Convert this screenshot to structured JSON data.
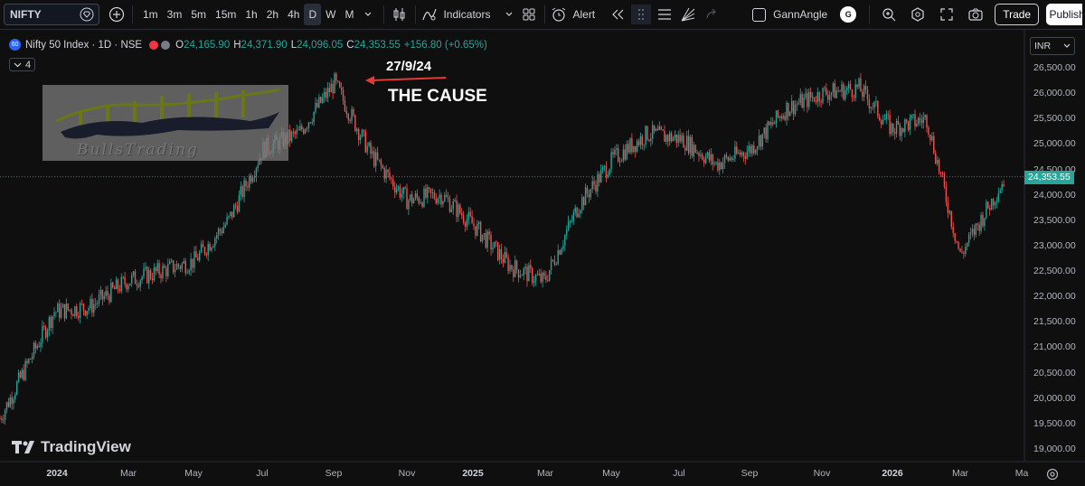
{
  "toolbar": {
    "symbol": "NIFTY",
    "timeframes": [
      "1m",
      "3m",
      "5m",
      "15m",
      "1h",
      "2h",
      "4h",
      "D",
      "W",
      "M"
    ],
    "active_timeframe": "D",
    "indicators_label": "Indicators",
    "alert_label": "Alert",
    "template_name": "GannAngle",
    "template_badge": "G",
    "trade_label": "Trade",
    "publish_label": "Publish"
  },
  "legend": {
    "exchange_badge": "60",
    "title": "Nifty 50 Index · 1D · NSE",
    "open_key": "O",
    "open": "24,165.90",
    "high_key": "H",
    "high": "24,371.90",
    "low_key": "L",
    "low": "24,096.05",
    "close_key": "C",
    "close": "24,353.55",
    "change": "+156.80 (+0.65%)",
    "collapsed_count": "4"
  },
  "watermark": {
    "text": "BullsTrading"
  },
  "annotation": {
    "date": "27/9/24",
    "text": "THE CAUSE"
  },
  "branding": {
    "name": "TradingView"
  },
  "price_scale": {
    "currency": "INR",
    "last_price": "24,353.55",
    "ticks": [
      "26,500.00",
      "26,000.00",
      "25,500.00",
      "25,000.00",
      "24,500.00",
      "24,000.00",
      "23,500.00",
      "23,000.00",
      "22,500.00",
      "22,000.00",
      "21,500.00",
      "21,000.00",
      "20,500.00",
      "20,000.00",
      "19,500.00",
      "19,000.00"
    ]
  },
  "time_scale": {
    "labels": [
      "2024",
      "Mar",
      "May",
      "Jul",
      "Sep",
      "Nov",
      "2025",
      "Mar",
      "May",
      "Jul",
      "Sep",
      "Nov",
      "2026",
      "Mar",
      "Ma"
    ]
  },
  "colors": {
    "up": "#26a69a",
    "down": "#ef5350",
    "background": "#0f0f0f",
    "annotation_arrow": "#e53935"
  },
  "chart_data": {
    "type": "candlestick",
    "symbol": "Nifty 50 Index",
    "interval": "1D",
    "exchange": "NSE",
    "ylim": [
      19000,
      26700
    ],
    "x_range": [
      "2024-01",
      "2026-04"
    ],
    "series_monthly_close_approx": [
      {
        "x": "2023-12",
        "y": 19600
      },
      {
        "x": "2024-01",
        "y": 21700
      },
      {
        "x": "2024-02",
        "y": 21800
      },
      {
        "x": "2024-03",
        "y": 22300
      },
      {
        "x": "2024-04",
        "y": 22500
      },
      {
        "x": "2024-05",
        "y": 22700
      },
      {
        "x": "2024-06",
        "y": 23500
      },
      {
        "x": "2024-07",
        "y": 24900
      },
      {
        "x": "2024-08",
        "y": 25200
      },
      {
        "x": "2024-09",
        "y": 26200
      },
      {
        "x": "2024-10",
        "y": 24800
      },
      {
        "x": "2024-11",
        "y": 23900
      },
      {
        "x": "2024-12",
        "y": 24000
      },
      {
        "x": "2025-01",
        "y": 23400
      },
      {
        "x": "2025-02",
        "y": 22600
      },
      {
        "x": "2025-03",
        "y": 22300
      },
      {
        "x": "2025-04",
        "y": 23800
      },
      {
        "x": "2025-05",
        "y": 24700
      },
      {
        "x": "2025-06",
        "y": 25200
      },
      {
        "x": "2025-07",
        "y": 25100
      },
      {
        "x": "2025-08",
        "y": 24600
      },
      {
        "x": "2025-09",
        "y": 24900
      },
      {
        "x": "2025-10",
        "y": 25700
      },
      {
        "x": "2025-11",
        "y": 26000
      },
      {
        "x": "2025-12",
        "y": 26100
      },
      {
        "x": "2026-01",
        "y": 25300
      },
      {
        "x": "2026-02",
        "y": 25500
      },
      {
        "x": "2026-03",
        "y": 22800
      },
      {
        "x": "2026-04",
        "y": 24350
      }
    ],
    "peak": {
      "date": "2024-09-27",
      "value": 26277
    }
  }
}
